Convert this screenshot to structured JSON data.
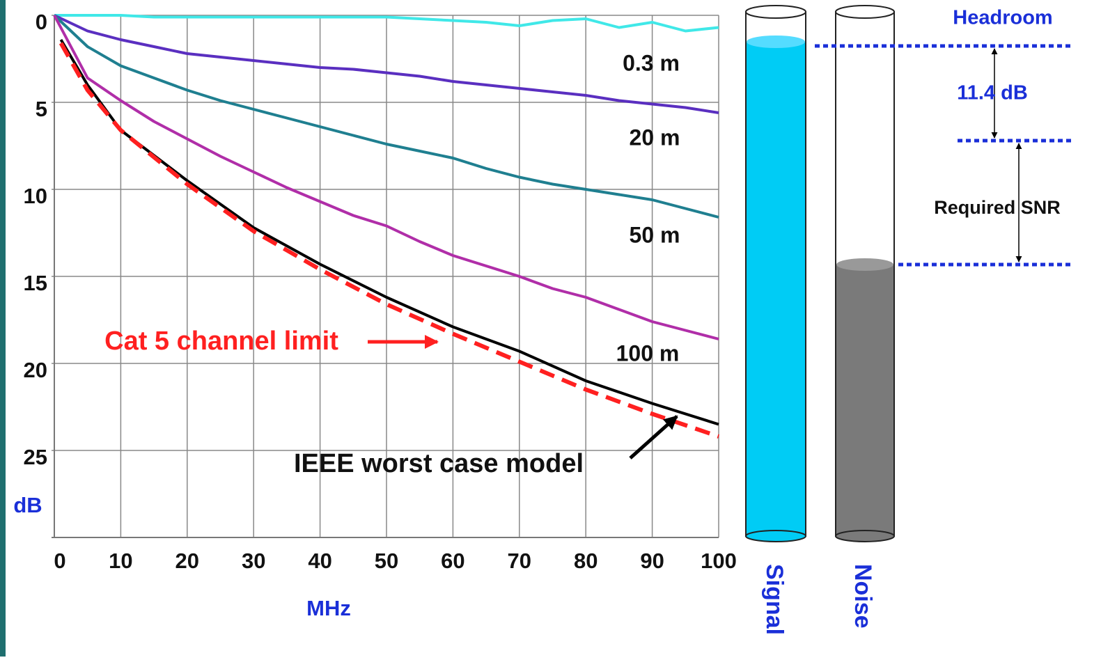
{
  "chart_data": {
    "type": "line",
    "x_label": "MHz",
    "y_label": "dB",
    "xlim": [
      0,
      100
    ],
    "ylim": [
      0,
      30
    ],
    "y_inverted": true,
    "xticks": [
      0,
      10,
      20,
      30,
      40,
      50,
      60,
      70,
      80,
      90,
      100
    ],
    "yticks": [
      0,
      5,
      10,
      15,
      20,
      25
    ],
    "grid": true,
    "series": [
      {
        "name": "0.3 m",
        "color": "#40e8e8",
        "x": [
          0,
          5,
          10,
          15,
          20,
          25,
          30,
          35,
          40,
          45,
          50,
          55,
          60,
          65,
          70,
          75,
          80,
          85,
          90,
          95,
          100
        ],
        "values": [
          0,
          0,
          0,
          0.1,
          0.1,
          0.1,
          0.1,
          0.1,
          0.1,
          0.1,
          0.1,
          0.2,
          0.3,
          0.4,
          0.6,
          0.3,
          0.2,
          0.7,
          0.4,
          0.9,
          0.7
        ]
      },
      {
        "name": "20 m",
        "color": "#5a2fc0",
        "x": [
          0,
          5,
          10,
          15,
          20,
          25,
          30,
          35,
          40,
          45,
          50,
          55,
          60,
          65,
          70,
          75,
          80,
          85,
          90,
          95,
          100
        ],
        "values": [
          0,
          0.9,
          1.4,
          1.8,
          2.2,
          2.4,
          2.6,
          2.8,
          3.0,
          3.1,
          3.3,
          3.5,
          3.8,
          4.0,
          4.2,
          4.4,
          4.6,
          4.9,
          5.1,
          5.3,
          5.6
        ]
      },
      {
        "name": "50 m",
        "color": "#1f7f90",
        "x": [
          0,
          5,
          10,
          15,
          20,
          25,
          30,
          35,
          40,
          45,
          50,
          55,
          60,
          65,
          70,
          75,
          80,
          85,
          90,
          95,
          100
        ],
        "values": [
          0,
          1.8,
          2.9,
          3.6,
          4.3,
          4.9,
          5.4,
          5.9,
          6.4,
          6.9,
          7.4,
          7.8,
          8.2,
          8.8,
          9.3,
          9.7,
          10.0,
          10.3,
          10.6,
          11.1,
          11.6
        ]
      },
      {
        "name": "100 m",
        "color": "#b02ea8",
        "x": [
          0,
          5,
          10,
          15,
          20,
          25,
          30,
          35,
          40,
          45,
          50,
          55,
          60,
          65,
          70,
          75,
          80,
          85,
          90,
          95,
          100
        ],
        "values": [
          0,
          3.6,
          4.9,
          6.1,
          7.1,
          8.1,
          9.0,
          9.9,
          10.7,
          11.5,
          12.1,
          13.0,
          13.8,
          14.4,
          15.0,
          15.7,
          16.2,
          16.9,
          17.6,
          18.1,
          18.6
        ]
      },
      {
        "name": "IEEE worst case model",
        "color": "#000000",
        "x": [
          1,
          5,
          10,
          20,
          30,
          40,
          50,
          60,
          70,
          80,
          90,
          100
        ],
        "values": [
          1.4,
          4.0,
          6.6,
          9.5,
          12.2,
          14.3,
          16.2,
          17.9,
          19.3,
          21.0,
          22.3,
          23.5
        ]
      },
      {
        "name": "Cat 5 channel limit",
        "color": "#ff2020",
        "dashed": true,
        "x": [
          1,
          5,
          10,
          20,
          30,
          40,
          50,
          60,
          70,
          80,
          90,
          100
        ],
        "values": [
          1.6,
          4.3,
          6.6,
          9.7,
          12.4,
          14.6,
          16.6,
          18.3,
          19.9,
          21.5,
          22.9,
          24.2
        ]
      }
    ]
  },
  "diagram": {
    "headroom": "Headroom",
    "gap": "11.4 dB",
    "required": "Required SNR",
    "signal": "Signal",
    "noise": "Noise"
  }
}
